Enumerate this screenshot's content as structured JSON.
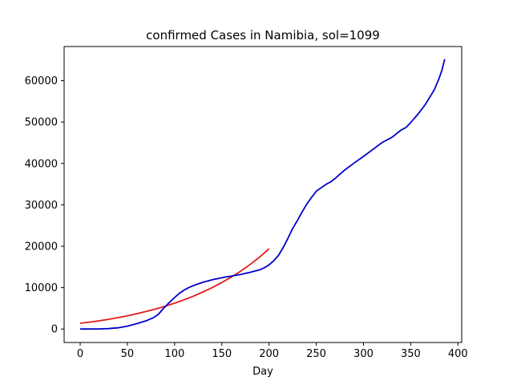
{
  "chart_data": {
    "type": "line",
    "title": "confirmed Cases in Namibia, sol=1099",
    "xlabel": "Day",
    "ylabel": "",
    "xlim": [
      -17,
      404
    ],
    "ylim": [
      -3250,
      68250
    ],
    "x_ticks": [
      0,
      50,
      100,
      150,
      200,
      250,
      300,
      350,
      400
    ],
    "y_ticks": [
      0,
      10000,
      20000,
      30000,
      40000,
      50000,
      60000
    ],
    "grid": false,
    "legend": "none",
    "series": [
      {
        "color": "#e41a1c",
        "points": [
          [
            0,
            1400
          ],
          [
            10,
            1680
          ],
          [
            20,
            1990
          ],
          [
            30,
            2350
          ],
          [
            40,
            2760
          ],
          [
            50,
            3200
          ],
          [
            60,
            3700
          ],
          [
            70,
            4250
          ],
          [
            80,
            4850
          ],
          [
            90,
            5500
          ],
          [
            100,
            6250
          ],
          [
            110,
            7050
          ],
          [
            120,
            7950
          ],
          [
            130,
            8950
          ],
          [
            140,
            10050
          ],
          [
            150,
            11250
          ],
          [
            160,
            12550
          ],
          [
            170,
            14000
          ],
          [
            180,
            15600
          ],
          [
            190,
            17400
          ],
          [
            200,
            19400
          ]
        ]
      },
      {
        "color": "#0000cc",
        "points": [
          [
            0,
            0
          ],
          [
            10,
            0
          ],
          [
            20,
            20
          ],
          [
            30,
            100
          ],
          [
            40,
            300
          ],
          [
            50,
            700
          ],
          [
            60,
            1300
          ],
          [
            70,
            2000
          ],
          [
            78,
            2800
          ],
          [
            83,
            3600
          ],
          [
            88,
            4900
          ],
          [
            93,
            6100
          ],
          [
            100,
            7600
          ],
          [
            105,
            8600
          ],
          [
            110,
            9400
          ],
          [
            115,
            10000
          ],
          [
            120,
            10500
          ],
          [
            130,
            11300
          ],
          [
            140,
            11900
          ],
          [
            150,
            12400
          ],
          [
            160,
            12800
          ],
          [
            170,
            13200
          ],
          [
            180,
            13700
          ],
          [
            190,
            14300
          ],
          [
            195,
            14800
          ],
          [
            200,
            15500
          ],
          [
            205,
            16500
          ],
          [
            210,
            17800
          ],
          [
            215,
            19700
          ],
          [
            220,
            21900
          ],
          [
            225,
            24300
          ],
          [
            230,
            26200
          ],
          [
            235,
            28300
          ],
          [
            240,
            30200
          ],
          [
            245,
            31800
          ],
          [
            250,
            33300
          ],
          [
            255,
            34100
          ],
          [
            260,
            34900
          ],
          [
            265,
            35500
          ],
          [
            270,
            36400
          ],
          [
            280,
            38400
          ],
          [
            290,
            40100
          ],
          [
            300,
            41700
          ],
          [
            310,
            43400
          ],
          [
            320,
            45100
          ],
          [
            330,
            46300
          ],
          [
            340,
            48100
          ],
          [
            345,
            48700
          ],
          [
            350,
            49900
          ],
          [
            355,
            51200
          ],
          [
            360,
            52600
          ],
          [
            365,
            54100
          ],
          [
            370,
            55900
          ],
          [
            375,
            57800
          ],
          [
            380,
            60500
          ],
          [
            383,
            62500
          ],
          [
            386,
            65200
          ]
        ]
      }
    ]
  }
}
